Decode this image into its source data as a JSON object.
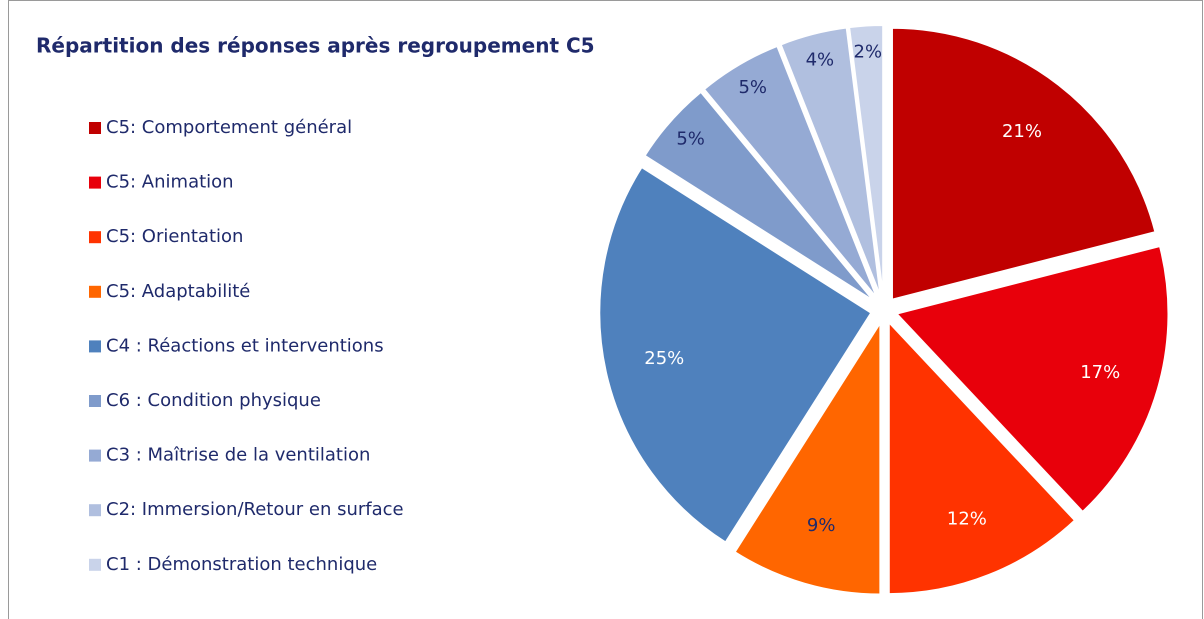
{
  "chart_data": {
    "type": "pie",
    "title": "Répartition des réponses après regroupement C5",
    "categories": [
      "C5: Comportement général",
      "C5: Animation",
      "C5: Orientation",
      "C5: Adaptabilité",
      "C4 : Réactions et interventions",
      "C6 : Condition physique",
      "C3 : Maîtrise de la ventilation",
      "C2: Immersion/Retour en surface",
      "C1 : Démonstration technique"
    ],
    "values": [
      21,
      17,
      12,
      9,
      25,
      5,
      5,
      4,
      2
    ],
    "value_labels": [
      "21%",
      "17%",
      "12%",
      "9%",
      "25%",
      "5%",
      "5%",
      "4%",
      "2%"
    ],
    "colors": [
      "#c00000",
      "#e8000b",
      "#ff3300",
      "#ff6600",
      "#4f81bd",
      "#7f9bcb",
      "#95aad4",
      "#b0bfdf",
      "#c9d3ea"
    ],
    "label_colors": [
      "#ffffff",
      "#ffffff",
      "#ffffff",
      "#1f2a6b",
      "#ffffff",
      "#1f2a6b",
      "#1f2a6b",
      "#1f2a6b",
      "#1f2a6b"
    ]
  }
}
